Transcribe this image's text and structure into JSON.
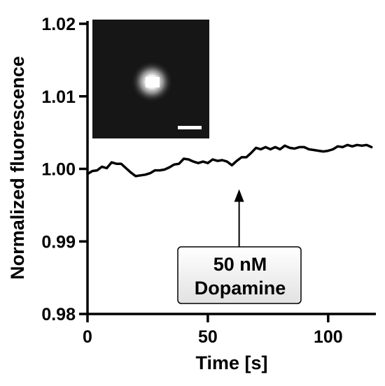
{
  "chart_data": {
    "type": "line",
    "title": "",
    "xlabel": "Time [s]",
    "ylabel": "Normalized fluorescence",
    "xlim": [
      0,
      120
    ],
    "ylim": [
      0.98,
      1.02
    ],
    "x_ticks": [
      0,
      50,
      100
    ],
    "x_tick_labels": [
      "0",
      "50",
      "100"
    ],
    "y_ticks": [
      0.98,
      0.99,
      1.0,
      1.01,
      1.02
    ],
    "y_tick_labels": [
      "0.98",
      "0.99",
      "1.00",
      "1.01",
      "1.02"
    ],
    "grid": false,
    "legend": "none",
    "series": [
      {
        "color": "#000000",
        "x": [
          0,
          2,
          4,
          6,
          8,
          10,
          12,
          14,
          16,
          18,
          20,
          22,
          24,
          26,
          28,
          30,
          32,
          34,
          36,
          38,
          40,
          42,
          44,
          46,
          48,
          50,
          52,
          54,
          56,
          58,
          60,
          62,
          64,
          66,
          68,
          70,
          72,
          74,
          76,
          78,
          80,
          82,
          84,
          86,
          88,
          90,
          92,
          94,
          96,
          98,
          100,
          102,
          104,
          106,
          108,
          110,
          112,
          114,
          116,
          118
        ],
        "values": [
          0.9993,
          0.9997,
          0.9998,
          1.0003,
          1.0001,
          1.0009,
          1.0007,
          1.0007,
          1.0001,
          0.9995,
          0.999,
          0.9991,
          0.9992,
          0.9994,
          0.9998,
          0.9998,
          0.9999,
          1.0002,
          1.0006,
          1.0007,
          1.0014,
          1.0013,
          1.001,
          1.0008,
          1.001,
          1.0008,
          1.0013,
          1.0011,
          1.0012,
          1.001,
          1.0005,
          1.0011,
          1.0016,
          1.0016,
          1.0022,
          1.0029,
          1.0027,
          1.003,
          1.0027,
          1.003,
          1.0027,
          1.0032,
          1.0029,
          1.0028,
          1.003,
          1.003,
          1.0027,
          1.0026,
          1.0025,
          1.0024,
          1.0025,
          1.0027,
          1.0031,
          1.003,
          1.0033,
          1.0031,
          1.0033,
          1.0032,
          1.0033,
          1.003
        ]
      }
    ],
    "annotations": [
      {
        "text_line1": "50 nM",
        "text_line2": "Dopamine",
        "arrow_x": 63,
        "arrow_y": 0.9997
      }
    ],
    "inset": {
      "type": "fluorescence-image",
      "scale_bar": true
    }
  }
}
